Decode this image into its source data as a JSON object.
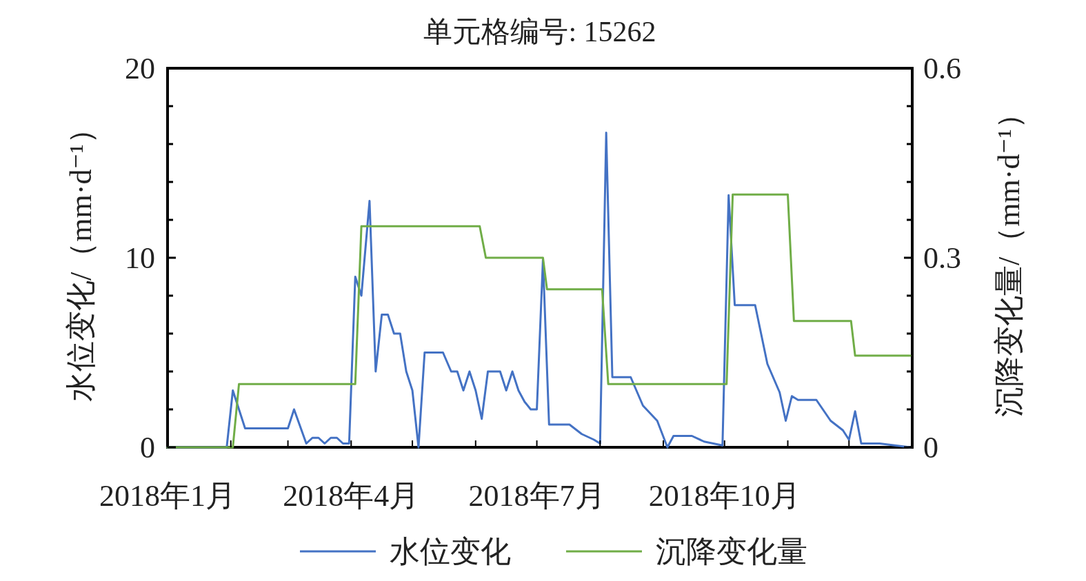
{
  "chart_data": {
    "type": "line",
    "title": "单元格编号: 15262",
    "ylabel": "水位变化/（mm·d⁻¹）",
    "y2label": "沉降变化量/（mm·d⁻¹）",
    "xlim": [
      "2018-01-01",
      "2019-01-01"
    ],
    "xticks": [
      {
        "value": "2018-01-01",
        "label": "2018年1月"
      },
      {
        "value": "2018-02-01",
        "label": null
      },
      {
        "value": "2018-03-01",
        "label": null
      },
      {
        "value": "2018-04-01",
        "label": "2018年4月"
      },
      {
        "value": "2018-05-01",
        "label": null
      },
      {
        "value": "2018-06-01",
        "label": null
      },
      {
        "value": "2018-07-01",
        "label": "2018年7月"
      },
      {
        "value": "2018-08-01",
        "label": null
      },
      {
        "value": "2018-09-01",
        "label": null
      },
      {
        "value": "2018-10-01",
        "label": "2018年10月"
      },
      {
        "value": "2018-11-01",
        "label": null
      },
      {
        "value": "2018-12-01",
        "label": null
      }
    ],
    "ylim": [
      0,
      20
    ],
    "yticks": [
      0,
      {
        "value": 2,
        "label": null
      },
      {
        "value": 4,
        "label": null
      },
      {
        "value": 6,
        "label": null
      },
      {
        "value": 8,
        "label": null
      },
      10,
      {
        "value": 12,
        "label": null
      },
      {
        "value": 14,
        "label": null
      },
      {
        "value": 16,
        "label": null
      },
      {
        "value": 18,
        "label": null
      },
      20
    ],
    "y2lim": [
      0,
      0.6
    ],
    "y2ticks": [
      0,
      {
        "value": 0.06,
        "label": null
      },
      {
        "value": 0.12,
        "label": null
      },
      {
        "value": 0.18,
        "label": null
      },
      {
        "value": 0.24,
        "label": null
      },
      0.3,
      {
        "value": 0.36,
        "label": null
      },
      {
        "value": 0.42,
        "label": null
      },
      {
        "value": 0.48,
        "label": null
      },
      {
        "value": 0.54,
        "label": null
      },
      0.6
    ],
    "legend": "bottom",
    "series": [
      {
        "name": "水位变化",
        "color": "#4472c4",
        "x": [
          "2018-01-01",
          "2018-01-30",
          "2018-02-02",
          "2018-02-08",
          "2018-03-01",
          "2018-03-04",
          "2018-03-10",
          "2018-03-13",
          "2018-03-16",
          "2018-03-19",
          "2018-03-22",
          "2018-03-25",
          "2018-03-28",
          "2018-03-31",
          "2018-04-03",
          "2018-04-06",
          "2018-04-10",
          "2018-04-13",
          "2018-04-16",
          "2018-04-19",
          "2018-04-22",
          "2018-04-25",
          "2018-04-28",
          "2018-05-01",
          "2018-05-04",
          "2018-05-07",
          "2018-05-16",
          "2018-05-20",
          "2018-05-23",
          "2018-05-26",
          "2018-05-29",
          "2018-06-01",
          "2018-06-04",
          "2018-06-07",
          "2018-06-13",
          "2018-06-16",
          "2018-06-19",
          "2018-06-22",
          "2018-06-25",
          "2018-06-28",
          "2018-07-01",
          "2018-07-04",
          "2018-07-07",
          "2018-07-17",
          "2018-07-23",
          "2018-07-29",
          "2018-08-01",
          "2018-08-04",
          "2018-08-07",
          "2018-08-16",
          "2018-08-22",
          "2018-08-29",
          "2018-09-03",
          "2018-09-06",
          "2018-09-15",
          "2018-09-21",
          "2018-09-30",
          "2018-10-03",
          "2018-10-06",
          "2018-10-16",
          "2018-10-22",
          "2018-10-28",
          "2018-10-31",
          "2018-11-03",
          "2018-11-06",
          "2018-11-15",
          "2018-11-22",
          "2018-11-28",
          "2018-12-01",
          "2018-12-04",
          "2018-12-07",
          "2018-12-16",
          "2018-12-31"
        ],
        "values": [
          0,
          0,
          3.0,
          1.0,
          1.0,
          2.0,
          0.2,
          0.5,
          0.5,
          0.2,
          0.5,
          0.5,
          0.2,
          0.2,
          9.0,
          8.0,
          13.0,
          4.0,
          7.0,
          7.0,
          6.0,
          6.0,
          4.0,
          3.0,
          0,
          5.0,
          5.0,
          4.0,
          4.0,
          3.0,
          4.0,
          3.0,
          1.5,
          4.0,
          4.0,
          3.0,
          4.0,
          3.0,
          2.4,
          2.0,
          2.0,
          9.9,
          1.2,
          1.2,
          0.7,
          0.4,
          0.2,
          16.6,
          3.7,
          3.7,
          2.2,
          1.4,
          0,
          0.6,
          0.6,
          0.3,
          0.1,
          13.3,
          7.5,
          7.5,
          4.4,
          2.9,
          1.4,
          2.7,
          2.5,
          2.5,
          1.4,
          0.9,
          0.4,
          1.9,
          0.2,
          0.2,
          0
        ]
      },
      {
        "name": "沉降变化量",
        "color": "#70ad47",
        "axis": "y2",
        "x": [
          "2018-01-01",
          "2018-02-02",
          "2018-02-05",
          "2018-04-03",
          "2018-04-06",
          "2018-06-03",
          "2018-06-06",
          "2018-07-04",
          "2018-07-06",
          "2018-08-02",
          "2018-08-05",
          "2018-10-02",
          "2018-10-05",
          "2018-11-01",
          "2018-11-04",
          "2018-12-02",
          "2018-12-04",
          "2018-12-31"
        ],
        "values": [
          0,
          0,
          0.1,
          0.1,
          0.35,
          0.35,
          0.3,
          0.3,
          0.25,
          0.25,
          0.1,
          0.1,
          0.4,
          0.4,
          0.2,
          0.2,
          0.145,
          0.145
        ]
      }
    ]
  }
}
